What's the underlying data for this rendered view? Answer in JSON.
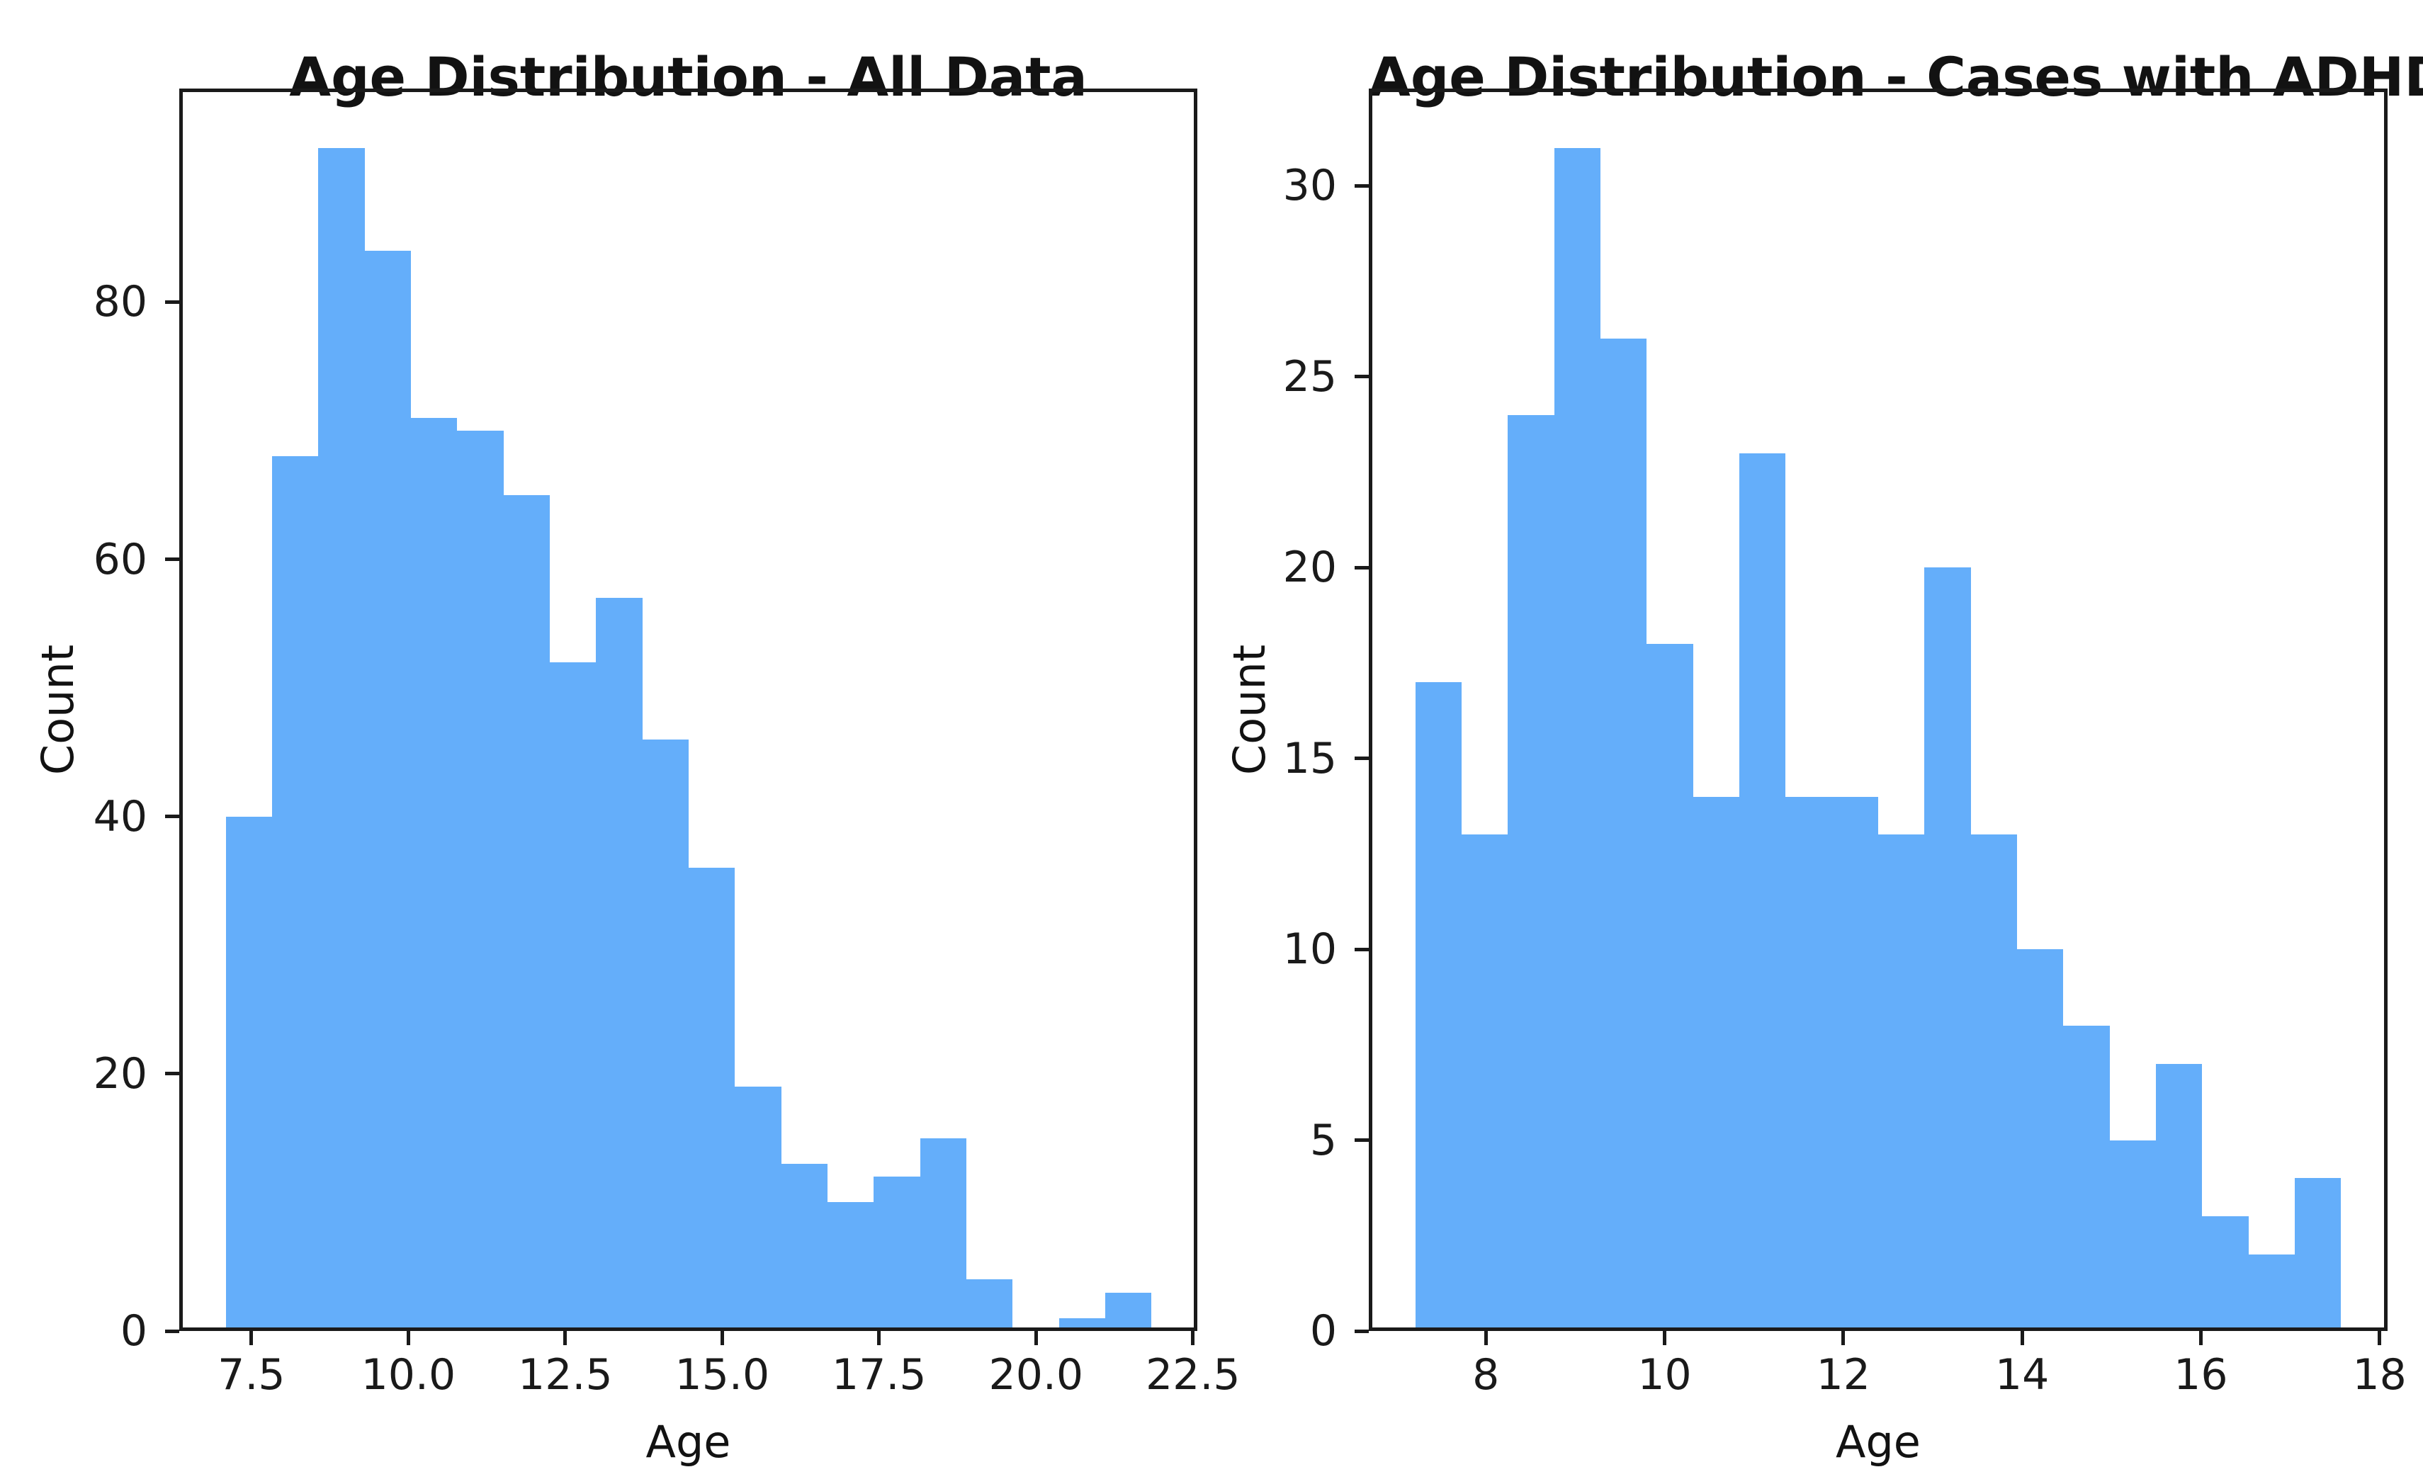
{
  "figure": {
    "background_color": "#ffffff",
    "text_color": "#121212",
    "axis_color": "#1a1a1a"
  },
  "chart_data": [
    {
      "type": "bar",
      "subtype": "histogram",
      "title": "Age Distribution - All Data",
      "xlabel": "Age",
      "ylabel": "Count",
      "bar_color": "#64AEFA",
      "grid": false,
      "legend": null,
      "bin_edges": [
        7.09,
        7.828,
        8.565,
        9.303,
        10.04,
        10.778,
        11.515,
        12.253,
        12.99,
        13.728,
        14.465,
        15.203,
        15.94,
        16.678,
        17.415,
        18.153,
        18.89,
        19.628,
        20.365,
        21.103,
        21.84
      ],
      "values": [
        40,
        68,
        92,
        84,
        71,
        70,
        65,
        52,
        57,
        46,
        36,
        19,
        13,
        10,
        12,
        15,
        4,
        0,
        1,
        3
      ],
      "xlim": [
        6.35,
        22.57
      ],
      "ylim": [
        0,
        96.6
      ],
      "xticks": [
        {
          "value": 7.5,
          "label": "7.5"
        },
        {
          "value": 10.0,
          "label": "10.0"
        },
        {
          "value": 12.5,
          "label": "12.5"
        },
        {
          "value": 15.0,
          "label": "15.0"
        },
        {
          "value": 17.5,
          "label": "17.5"
        },
        {
          "value": 20.0,
          "label": "20.0"
        },
        {
          "value": 22.5,
          "label": "22.5"
        }
      ],
      "yticks": [
        {
          "value": 0,
          "label": "0"
        },
        {
          "value": 20,
          "label": "20"
        },
        {
          "value": 40,
          "label": "40"
        },
        {
          "value": 60,
          "label": "60"
        },
        {
          "value": 80,
          "label": "80"
        }
      ]
    },
    {
      "type": "bar",
      "subtype": "histogram",
      "title": "Age Distribution - Cases with ADHD",
      "xlabel": "Age",
      "ylabel": "Count",
      "bar_color": "#64AEFA",
      "grid": false,
      "legend": null,
      "bin_edges": [
        7.21,
        7.728,
        8.246,
        8.764,
        9.282,
        9.8,
        10.318,
        10.836,
        11.354,
        11.872,
        12.39,
        12.908,
        13.426,
        13.944,
        14.462,
        14.98,
        15.498,
        16.016,
        16.534,
        17.052,
        17.57
      ],
      "values": [
        17,
        13,
        24,
        31,
        26,
        18,
        14,
        23,
        14,
        14,
        13,
        20,
        13,
        10,
        8,
        5,
        7,
        3,
        2,
        4
      ],
      "xlim": [
        6.69,
        18.09
      ],
      "ylim": [
        0,
        32.55
      ],
      "xticks": [
        {
          "value": 8,
          "label": "8"
        },
        {
          "value": 10,
          "label": "10"
        },
        {
          "value": 12,
          "label": "12"
        },
        {
          "value": 14,
          "label": "14"
        },
        {
          "value": 16,
          "label": "16"
        },
        {
          "value": 18,
          "label": "18"
        }
      ],
      "yticks": [
        {
          "value": 0,
          "label": "0"
        },
        {
          "value": 5,
          "label": "5"
        },
        {
          "value": 10,
          "label": "10"
        },
        {
          "value": 15,
          "label": "15"
        },
        {
          "value": 20,
          "label": "20"
        },
        {
          "value": 25,
          "label": "25"
        },
        {
          "value": 30,
          "label": "30"
        }
      ]
    }
  ]
}
